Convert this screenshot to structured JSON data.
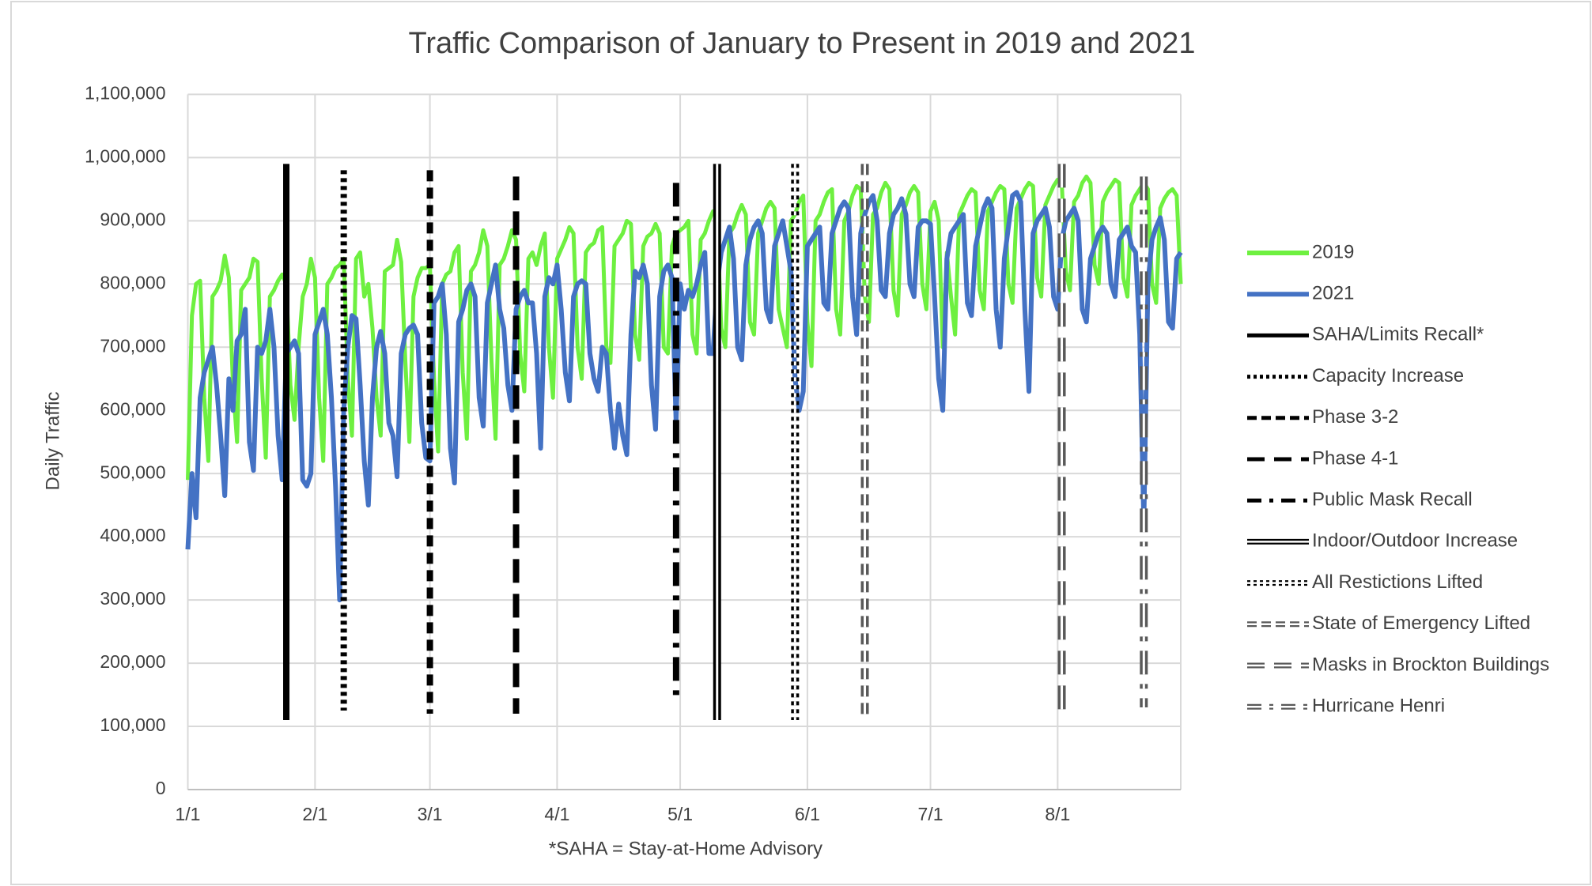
{
  "chart_data": {
    "type": "line",
    "title": "Traffic Comparison of January to Present in 2019 and 2021",
    "y_label": "Daily Traffic",
    "annotation": "*SAHA = Stay-at-Home Advisory",
    "grid": true,
    "legend": "right",
    "ylim": [
      0,
      1100000
    ],
    "yticks": [
      0,
      {
        "value": 100000,
        "label": "100,000"
      },
      {
        "value": 200000,
        "label": "200,000"
      },
      {
        "value": 300000,
        "label": "300,000"
      },
      {
        "value": 400000,
        "label": "400,000"
      },
      {
        "value": 500000,
        "label": "500,000"
      },
      {
        "value": 600000,
        "label": "600,000"
      },
      {
        "value": 700000,
        "label": "700,000"
      },
      {
        "value": 800000,
        "label": "800,000"
      },
      {
        "value": 900000,
        "label": "900,000"
      },
      {
        "value": 1000000,
        "label": "1,000,000"
      },
      {
        "value": 1100000,
        "label": "1,100,000"
      }
    ],
    "categories": [
      "1/1",
      null,
      null,
      null,
      null,
      null,
      null,
      null,
      null,
      null,
      null,
      null,
      null,
      null,
      null,
      null,
      null,
      null,
      null,
      null,
      null,
      null,
      null,
      null,
      null,
      null,
      null,
      null,
      null,
      null,
      null,
      "2/1",
      null,
      null,
      null,
      null,
      null,
      null,
      null,
      null,
      null,
      null,
      null,
      null,
      null,
      null,
      null,
      null,
      null,
      null,
      null,
      null,
      null,
      null,
      null,
      null,
      null,
      null,
      null,
      "3/1",
      null,
      null,
      null,
      null,
      null,
      null,
      null,
      null,
      null,
      null,
      null,
      null,
      null,
      null,
      null,
      null,
      null,
      null,
      null,
      null,
      null,
      null,
      null,
      null,
      null,
      null,
      null,
      null,
      null,
      null,
      "4/1",
      null,
      null,
      null,
      null,
      null,
      null,
      null,
      null,
      null,
      null,
      null,
      null,
      null,
      null,
      null,
      null,
      null,
      null,
      null,
      null,
      null,
      null,
      null,
      null,
      null,
      null,
      null,
      null,
      null,
      "5/1",
      null,
      null,
      null,
      null,
      null,
      null,
      null,
      null,
      null,
      null,
      null,
      null,
      null,
      null,
      null,
      null,
      null,
      null,
      null,
      null,
      null,
      null,
      null,
      null,
      null,
      null,
      null,
      null,
      null,
      null,
      "6/1",
      null,
      null,
      null,
      null,
      null,
      null,
      null,
      null,
      null,
      null,
      null,
      null,
      null,
      null,
      null,
      null,
      null,
      null,
      null,
      null,
      null,
      null,
      null,
      null,
      null,
      null,
      null,
      null,
      null,
      "7/1",
      null,
      null,
      null,
      null,
      null,
      null,
      null,
      null,
      null,
      null,
      null,
      null,
      null,
      null,
      null,
      null,
      null,
      null,
      null,
      null,
      null,
      null,
      null,
      null,
      null,
      null,
      null,
      null,
      null,
      null,
      "8/1",
      null,
      null,
      null,
      null,
      null,
      null,
      null,
      null,
      null,
      null,
      null,
      null,
      null,
      null,
      null,
      null,
      null,
      null,
      null,
      null,
      null,
      null,
      null,
      null,
      null,
      null,
      null,
      null,
      null,
      null
    ],
    "series": [
      {
        "name": "2019",
        "color": "#6ef040",
        "values": [
          490000,
          750000,
          800000,
          805000,
          620000,
          520000,
          780000,
          790000,
          805000,
          845000,
          810000,
          640000,
          550000,
          790000,
          800000,
          810000,
          840000,
          835000,
          650000,
          525000,
          780000,
          790000,
          805000,
          815000,
          800000,
          640000,
          585000,
          700000,
          780000,
          800000,
          840000,
          810000,
          620000,
          520000,
          800000,
          810000,
          825000,
          830000,
          840000,
          650000,
          560000,
          840000,
          850000,
          780000,
          800000,
          730000,
          620000,
          560000,
          820000,
          825000,
          830000,
          870000,
          835000,
          680000,
          550000,
          780000,
          810000,
          825000,
          825000,
          830000,
          650000,
          535000,
          800000,
          815000,
          820000,
          850000,
          860000,
          660000,
          555000,
          820000,
          830000,
          850000,
          885000,
          860000,
          680000,
          555000,
          830000,
          840000,
          860000,
          885000,
          870000,
          690000,
          630000,
          840000,
          850000,
          830000,
          860000,
          880000,
          700000,
          620000,
          840000,
          855000,
          870000,
          890000,
          880000,
          700000,
          650000,
          850000,
          860000,
          865000,
          885000,
          890000,
          700000,
          675000,
          860000,
          870000,
          880000,
          900000,
          895000,
          720000,
          680000,
          860000,
          875000,
          880000,
          895000,
          880000,
          700000,
          690000,
          860000,
          880000,
          885000,
          890000,
          900000,
          720000,
          690000,
          870000,
          880000,
          900000,
          915000,
          905000,
          730000,
          700000,
          880000,
          890000,
          910000,
          925000,
          910000,
          740000,
          720000,
          880000,
          900000,
          920000,
          930000,
          920000,
          760000,
          730000,
          700000,
          900000,
          910000,
          930000,
          940000,
          740000,
          670000,
          900000,
          910000,
          930000,
          945000,
          950000,
          760000,
          720000,
          900000,
          915000,
          940000,
          955000,
          950000,
          780000,
          740000,
          910000,
          920000,
          945000,
          960000,
          950000,
          790000,
          750000,
          910000,
          925000,
          945000,
          955000,
          945000,
          800000,
          760000,
          915000,
          930000,
          900000,
          700000,
          850000,
          780000,
          720000,
          910000,
          925000,
          940000,
          950000,
          945000,
          790000,
          760000,
          915000,
          930000,
          945000,
          955000,
          950000,
          800000,
          770000,
          920000,
          935000,
          950000,
          960000,
          955000,
          810000,
          780000,
          925000,
          940000,
          955000,
          965000,
          960000,
          820000,
          790000,
          930000,
          940000,
          960000,
          970000,
          960000,
          830000,
          800000,
          930000,
          945000,
          955000,
          965000,
          960000,
          810000,
          780000,
          925000,
          940000,
          950000,
          960000,
          950000,
          800000,
          770000,
          920000,
          935000,
          945000,
          950000,
          940000,
          800000
        ]
      },
      {
        "name": "2021",
        "color": "#4472c4",
        "values": [
          380000,
          500000,
          430000,
          620000,
          660000,
          680000,
          700000,
          640000,
          560000,
          465000,
          650000,
          600000,
          710000,
          720000,
          760000,
          550000,
          505000,
          700000,
          690000,
          710000,
          760000,
          700000,
          560000,
          490000,
          690000,
          700000,
          710000,
          690000,
          490000,
          480000,
          500000,
          720000,
          740000,
          760000,
          720000,
          620000,
          480000,
          300000,
          600000,
          700000,
          750000,
          745000,
          640000,
          520000,
          450000,
          620000,
          700000,
          725000,
          690000,
          580000,
          560000,
          495000,
          690000,
          720000,
          730000,
          735000,
          720000,
          580000,
          525000,
          520000,
          770000,
          780000,
          800000,
          720000,
          540000,
          485000,
          740000,
          760000,
          790000,
          800000,
          780000,
          620000,
          575000,
          770000,
          800000,
          830000,
          760000,
          730000,
          640000,
          600000,
          760000,
          780000,
          790000,
          770000,
          770000,
          690000,
          540000,
          780000,
          810000,
          800000,
          830000,
          760000,
          660000,
          615000,
          780000,
          800000,
          805000,
          800000,
          690000,
          650000,
          630000,
          700000,
          690000,
          600000,
          540000,
          610000,
          560000,
          530000,
          720000,
          820000,
          810000,
          830000,
          800000,
          640000,
          570000,
          780000,
          820000,
          830000,
          810000,
          580000,
          800000,
          760000,
          790000,
          780000,
          800000,
          830000,
          850000,
          690000,
          690000,
          800000,
          850000,
          870000,
          890000,
          840000,
          700000,
          680000,
          830000,
          870000,
          890000,
          900000,
          880000,
          760000,
          740000,
          860000,
          880000,
          900000,
          860000,
          820000,
          650000,
          600000,
          630000,
          860000,
          870000,
          880000,
          890000,
          770000,
          760000,
          880000,
          900000,
          920000,
          930000,
          920000,
          780000,
          720000,
          880000,
          910000,
          930000,
          940000,
          900000,
          790000,
          780000,
          880000,
          910000,
          920000,
          935000,
          910000,
          800000,
          780000,
          890000,
          900000,
          900000,
          895000,
          780000,
          650000,
          600000,
          840000,
          880000,
          890000,
          900000,
          910000,
          770000,
          750000,
          860000,
          890000,
          920000,
          935000,
          920000,
          760000,
          700000,
          840000,
          890000,
          940000,
          945000,
          930000,
          760000,
          630000,
          880000,
          900000,
          910000,
          920000,
          890000,
          780000,
          760000,
          870000,
          900000,
          910000,
          920000,
          900000,
          760000,
          740000,
          840000,
          860000,
          880000,
          890000,
          880000,
          800000,
          780000,
          870000,
          880000,
          890000,
          860000,
          850000,
          720000,
          420000,
          800000,
          870000,
          890000,
          905000,
          870000,
          740000,
          730000,
          840000,
          850000
        ]
      }
    ],
    "events": [
      {
        "name": "SAHA/Limits Recall*",
        "index": 24,
        "range": [
          110000,
          990000
        ],
        "color": "#000000",
        "style": "solid",
        "double": false
      },
      {
        "name": "Capacity Increase",
        "index": 38,
        "range": [
          125000,
          980000
        ],
        "color": "#000000",
        "style": "dotted",
        "double": false
      },
      {
        "name": "Phase 3-2",
        "index": 59,
        "range": [
          120000,
          980000
        ],
        "color": "#000000",
        "style": "dashed",
        "double": false
      },
      {
        "name": "Phase 4-1",
        "index": 80,
        "range": [
          120000,
          970000
        ],
        "color": "#000000",
        "style": "long-dash",
        "double": false
      },
      {
        "name": "Public Mask Recall",
        "index": 119,
        "range": [
          140000,
          960000
        ],
        "color": "#000000",
        "style": "dash-dot",
        "double": false
      },
      {
        "name": "Indoor/Outdoor Increase",
        "index": 129,
        "range": [
          110000,
          990000
        ],
        "color": "#000000",
        "style": "solid",
        "double": true
      },
      {
        "name": "All Restictions Lifted",
        "index": 148,
        "range": [
          110000,
          990000
        ],
        "color": "#000000",
        "style": "dotted",
        "double": true
      },
      {
        "name": "State of Emergency Lifted",
        "index": 165,
        "range": [
          110000,
          990000
        ],
        "color": "#595959",
        "style": "dashed",
        "double": true
      },
      {
        "name": "Masks in Brockton Buildings",
        "index": 213,
        "range": [
          110000,
          990000
        ],
        "color": "#595959",
        "style": "long-dash",
        "double": true
      },
      {
        "name": "Hurricane Henri",
        "index": 233,
        "range": [
          130000,
          970000
        ],
        "color": "#595959",
        "style": "dash-dot",
        "double": true
      }
    ]
  }
}
